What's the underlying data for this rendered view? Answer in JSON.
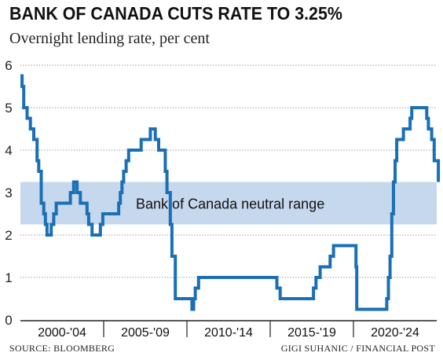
{
  "header": {
    "title": "BANK OF CANADA CUTS RATE TO 3.25%",
    "subtitle": "Overnight lending rate, per cent"
  },
  "footer": {
    "source": "SOURCE: BLOOMBERG",
    "credit": "GIGI SUHANIC / FINANCIAL POST"
  },
  "colors": {
    "line": "#1a6fb5",
    "band": "#c6d8ee",
    "grid": "#888888",
    "axis": "#222222"
  },
  "chart_data": {
    "type": "line",
    "title": "BANK OF CANADA CUTS RATE TO 3.25%",
    "subtitle": "Overnight lending rate, per cent",
    "xlabel": "",
    "ylabel": "",
    "xlim": [
      2000,
      2025
    ],
    "ylim": [
      0,
      6
    ],
    "yticks": [
      0,
      1,
      2,
      3,
      4,
      5,
      6
    ],
    "grid": "horizontal dotted",
    "x_period_labels": [
      "2000-'04",
      "2005-'09",
      "2010-'14",
      "2015-'19",
      "2020-'24"
    ],
    "shaded_band": {
      "label": "Bank of Canada neutral range",
      "low": 2.25,
      "high": 3.25
    },
    "series": [
      {
        "name": "",
        "x": [
          2000.0,
          2000.1,
          2000.2,
          2000.4,
          2000.6,
          2000.8,
          2001.0,
          2001.1,
          2001.25,
          2001.4,
          2001.5,
          2001.6,
          2001.75,
          2001.85,
          2002.0,
          2002.15,
          2002.3,
          2002.4,
          2002.6,
          2003.0,
          2003.2,
          2003.4,
          2003.6,
          2003.8,
          2004.0,
          2004.1,
          2004.3,
          2004.6,
          2004.8,
          2004.95,
          2005.1,
          2005.3,
          2005.7,
          2005.9,
          2006.0,
          2006.1,
          2006.2,
          2006.35,
          2006.5,
          2007.25,
          2007.4,
          2007.6,
          2007.8,
          2007.95,
          2008.1,
          2008.3,
          2008.7,
          2008.8,
          2008.9,
          2009.0,
          2009.1,
          2009.3,
          2010.3,
          2010.4,
          2010.5,
          2010.7,
          2015.0,
          2015.4,
          2015.6,
          2016.5,
          2017.5,
          2017.6,
          2017.75,
          2018.0,
          2018.2,
          2018.6,
          2018.8,
          2019.0,
          2020.0,
          2020.15,
          2020.2,
          2021.9,
          2022.0,
          2022.1,
          2022.2,
          2022.3,
          2022.4,
          2022.5,
          2022.6,
          2022.7,
          2023.0,
          2023.1,
          2023.2,
          2023.4,
          2023.5,
          2024.3,
          2024.4,
          2024.5,
          2024.6,
          2024.7,
          2024.85,
          2025.0,
          2025.1
        ],
        "values": [
          5.75,
          5.5,
          5.0,
          4.75,
          4.5,
          4.25,
          3.75,
          3.5,
          2.75,
          2.5,
          2.25,
          2.0,
          2.0,
          2.25,
          2.5,
          2.75,
          2.75,
          2.75,
          2.75,
          3.0,
          3.25,
          3.0,
          2.75,
          2.75,
          2.5,
          2.25,
          2.0,
          2.0,
          2.25,
          2.5,
          2.5,
          2.5,
          2.5,
          2.75,
          3.0,
          3.25,
          3.5,
          3.75,
          4.0,
          4.25,
          4.25,
          4.25,
          4.5,
          4.5,
          4.25,
          4.0,
          3.5,
          3.0,
          3.0,
          2.25,
          1.5,
          0.5,
          0.25,
          0.5,
          0.75,
          1.0,
          1.0,
          0.75,
          0.5,
          0.5,
          0.5,
          0.75,
          1.0,
          1.25,
          1.25,
          1.5,
          1.75,
          1.75,
          1.75,
          1.25,
          0.25,
          0.25,
          0.5,
          1.0,
          1.5,
          2.5,
          3.25,
          3.75,
          4.25,
          4.25,
          4.5,
          4.5,
          4.5,
          4.75,
          5.0,
          5.0,
          4.75,
          4.5,
          4.5,
          4.25,
          3.75,
          3.75,
          3.25
        ]
      }
    ]
  }
}
